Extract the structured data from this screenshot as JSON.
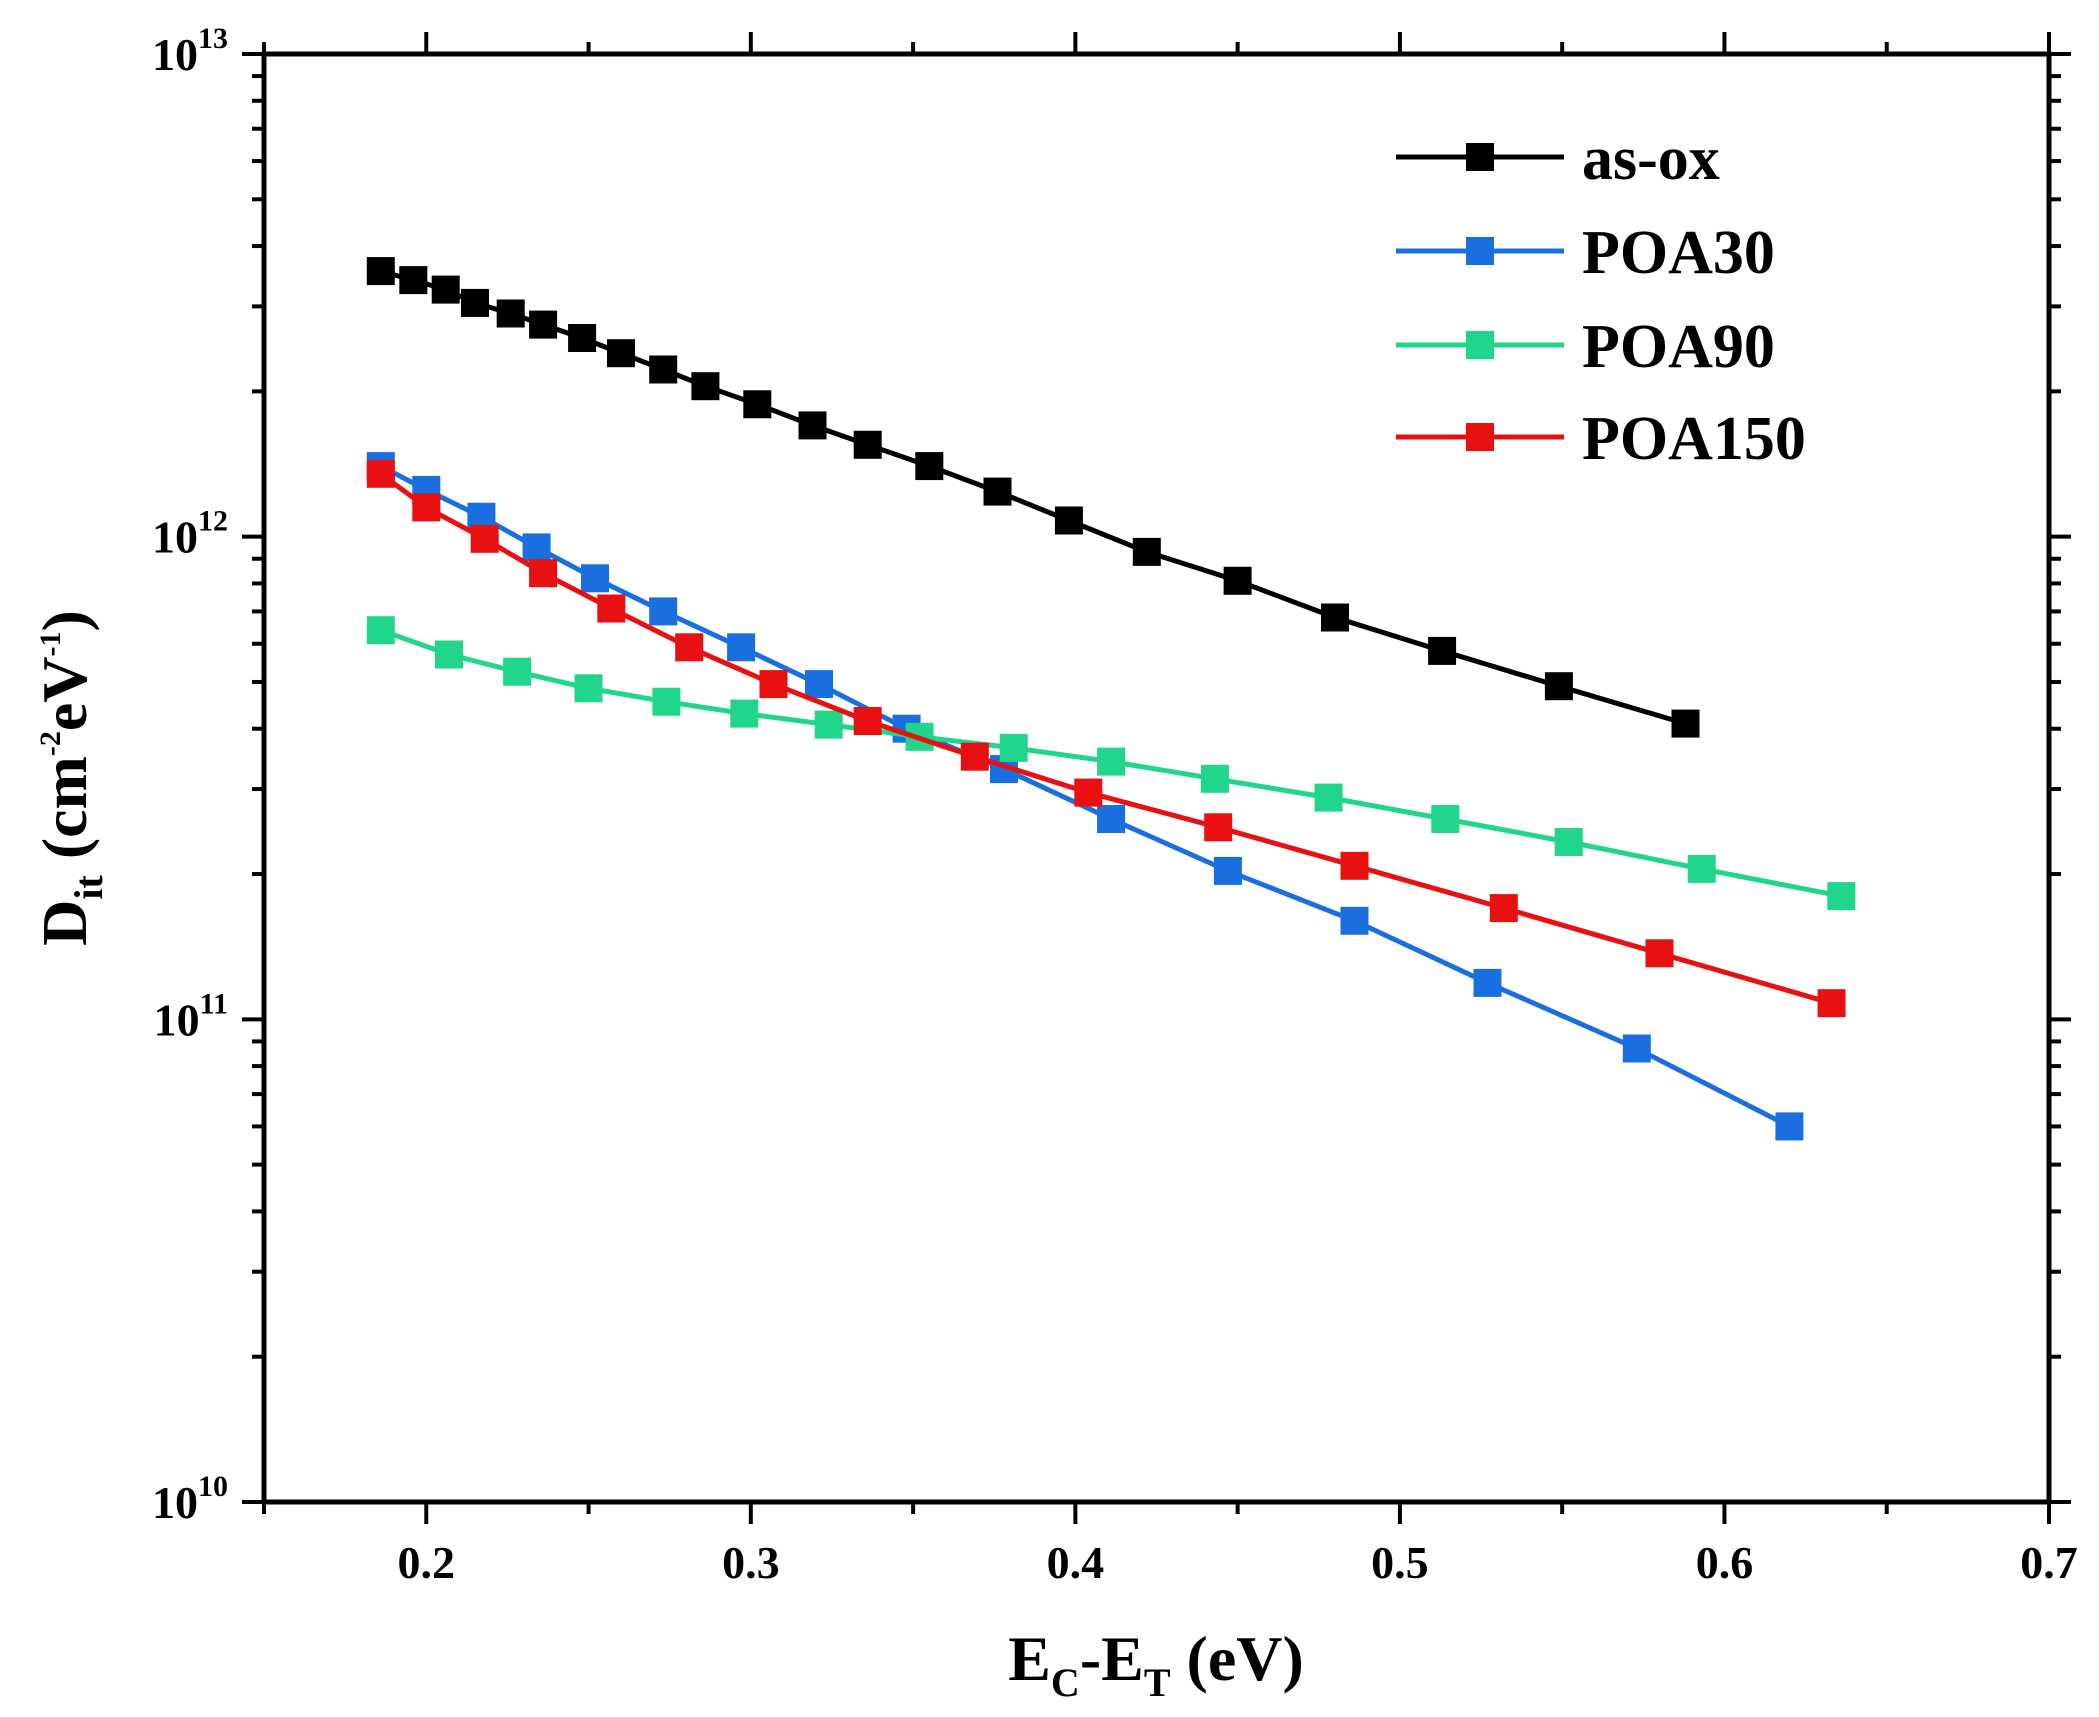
{
  "chart_data": {
    "type": "line",
    "title": "",
    "xlabel": {
      "base1": "E",
      "sub1": "C",
      "dash": "-",
      "base2": "E",
      "sub2": "T",
      "unit": " (eV)"
    },
    "ylabel": {
      "base": "D",
      "sub": "it",
      "open": " (cm",
      "exp1": "-2",
      "mid": "eV",
      "exp2": "-1",
      "close": ")"
    },
    "xlim": [
      0.15,
      0.7
    ],
    "ylim": [
      10000000000.0,
      10000000000000.0
    ],
    "yscale": "log",
    "x_ticks": [
      {
        "value": 0.2,
        "label": "0.2"
      },
      {
        "value": 0.3,
        "label": "0.3"
      },
      {
        "value": 0.4,
        "label": "0.4"
      },
      {
        "value": 0.5,
        "label": "0.5"
      },
      {
        "value": 0.6,
        "label": "0.6"
      },
      {
        "value": 0.7,
        "label": "0.7"
      }
    ],
    "y_ticks": [
      {
        "value": 10000000000.0,
        "base": "10",
        "exp": "10"
      },
      {
        "value": 100000000000.0,
        "base": "10",
        "exp": "11"
      },
      {
        "value": 1000000000000.0,
        "base": "10",
        "exp": "12"
      },
      {
        "value": 10000000000000.0,
        "base": "10",
        "exp": "13"
      }
    ],
    "legend_position": "top-right",
    "series": [
      {
        "name": "as-ox",
        "color": "#000000",
        "x": [
          0.186,
          0.196,
          0.206,
          0.215,
          0.226,
          0.236,
          0.248,
          0.26,
          0.273,
          0.286,
          0.302,
          0.319,
          0.336,
          0.355,
          0.376,
          0.398,
          0.422,
          0.45,
          0.48,
          0.513,
          0.549,
          0.588
        ],
        "y": [
          3550000000000.0,
          3400000000000.0,
          3250000000000.0,
          3050000000000.0,
          2900000000000.0,
          2750000000000.0,
          2580000000000.0,
          2400000000000.0,
          2220000000000.0,
          2050000000000.0,
          1880000000000.0,
          1700000000000.0,
          1550000000000.0,
          1400000000000.0,
          1240000000000.0,
          1080000000000.0,
          930000000000.0,
          810000000000.0,
          680000000000.0,
          580000000000.0,
          490000000000.0,
          410000000000.0
        ]
      },
      {
        "name": "POA30",
        "color": "#1a6fe0",
        "x": [
          0.186,
          0.2,
          0.217,
          0.234,
          0.252,
          0.273,
          0.297,
          0.321,
          0.348,
          0.378,
          0.411,
          0.447,
          0.486,
          0.527,
          0.573,
          0.62
        ],
        "y": [
          1400000000000.0,
          1250000000000.0,
          1100000000000.0,
          950000000000.0,
          820000000000.0,
          700000000000.0,
          590000000000.0,
          495000000000.0,
          400000000000.0,
          330000000000.0,
          260000000000.0,
          203000000000.0,
          160000000000.0,
          119000000000.0,
          87000000000.0,
          60000000000.0
        ]
      },
      {
        "name": "POA90",
        "color": "#1fd68a",
        "x": [
          0.186,
          0.207,
          0.228,
          0.25,
          0.274,
          0.298,
          0.324,
          0.352,
          0.381,
          0.411,
          0.443,
          0.478,
          0.514,
          0.552,
          0.593,
          0.636
        ],
        "y": [
          640000000000.0,
          570000000000.0,
          525000000000.0,
          485000000000.0,
          455000000000.0,
          430000000000.0,
          408000000000.0,
          385000000000.0,
          365000000000.0,
          342000000000.0,
          315000000000.0,
          288000000000.0,
          260000000000.0,
          233000000000.0,
          205000000000.0,
          180000000000.0
        ]
      },
      {
        "name": "POA150",
        "color": "#e81010",
        "x": [
          0.186,
          0.2,
          0.218,
          0.236,
          0.257,
          0.281,
          0.307,
          0.336,
          0.369,
          0.404,
          0.444,
          0.486,
          0.532,
          0.58,
          0.633
        ],
        "y": [
          1350000000000.0,
          1150000000000.0,
          990000000000.0,
          840000000000.0,
          710000000000.0,
          590000000000.0,
          495000000000.0,
          415000000000.0,
          350000000000.0,
          295000000000.0,
          250000000000.0,
          208000000000.0,
          170000000000.0,
          137000000000.0,
          108000000000.0
        ]
      }
    ]
  }
}
